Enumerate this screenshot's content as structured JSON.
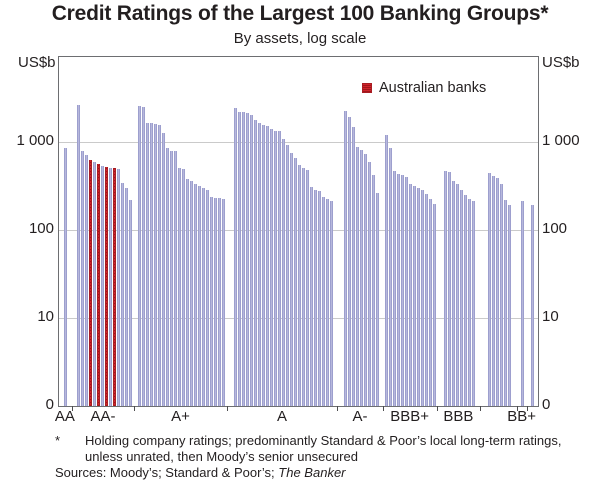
{
  "title": "Credit Ratings of the Largest 100 Banking Groups*",
  "subtitle": "By assets, log scale",
  "y_axis": {
    "unit_left": "US$b",
    "unit_right": "US$b",
    "tick_labels": [
      "1 000",
      "100",
      "10",
      "0"
    ]
  },
  "legend": {
    "label": "Australian banks",
    "color": "#d0242b"
  },
  "footnote": {
    "star": "*",
    "line1": "Holding company ratings; predominantly Standard & Poor’s local long-term",
    "line2": "ratings, unless unrated, then Moody’s senior unsecured",
    "sources_prefix": "Sources: Moody’s; Standard & Poor’s; ",
    "sources_italic": "The Banker"
  },
  "colors": {
    "bar_fill": "#b7b8dc",
    "bar_edge": "#9d9fce",
    "australian_fill": "#d0242b",
    "australian_edge": "#a81d23",
    "gridline": "#cacaca",
    "axis": "#6d6e71"
  },
  "chart_data": {
    "type": "bar",
    "title": "Credit Ratings of the Largest 100 Banking Groups*",
    "subtitle": "By assets, log scale",
    "ylabel": "US$b",
    "yscale": "log",
    "ylim": [
      1,
      9000
    ],
    "gridline_values": [
      10,
      100,
      1000
    ],
    "grid": true,
    "legend_position": "top-right-inside",
    "note": "Each bar is one banking group, grouped by credit rating, sorted by assets; red bars are the four Australian banks (rated AA-). Unlabeled groups correspond to unmarked rating notches.",
    "groups": [
      {
        "label": "AA",
        "values": [
          850
        ],
        "australian_indexes": []
      },
      {
        "label": "AA-",
        "values": [
          2650,
          780,
          720,
          630,
          595,
          565,
          535,
          520,
          510,
          500,
          495,
          340,
          300,
          220
        ],
        "australian_indexes": [
          3,
          5,
          7,
          9
        ]
      },
      {
        "label": "A+",
        "values": [
          2550,
          2480,
          1650,
          1640,
          1620,
          1580,
          1270,
          860,
          790,
          785,
          510,
          490,
          375,
          360,
          330,
          315,
          300,
          287,
          240,
          234,
          230,
          226
        ],
        "australian_indexes": []
      },
      {
        "label": "A",
        "values": [
          2440,
          2200,
          2190,
          2140,
          2050,
          1800,
          1650,
          1580,
          1510,
          1420,
          1350,
          1320,
          1070,
          930,
          750,
          660,
          545,
          510,
          486,
          305,
          287,
          280,
          240,
          226,
          213
        ],
        "australian_indexes": []
      },
      {
        "label": "A-",
        "values": [
          2250,
          1900,
          1500,
          880,
          820,
          740,
          600,
          425,
          263
        ],
        "australian_indexes": []
      },
      {
        "label": "BBB+",
        "values": [
          1210,
          860,
          465,
          435,
          420,
          395,
          335,
          315,
          300,
          287,
          255,
          225,
          195
        ],
        "australian_indexes": []
      },
      {
        "label": "BBB",
        "values": [
          465,
          460,
          365,
          330,
          287,
          250,
          225,
          213
        ],
        "australian_indexes": []
      },
      {
        "label": "",
        "values": [
          445,
          410,
          385,
          330,
          220,
          190
        ],
        "australian_indexes": []
      },
      {
        "label": "BB+",
        "values": [
          215
        ],
        "australian_indexes": []
      },
      {
        "label": "",
        "values": [
          190
        ],
        "australian_indexes": []
      }
    ]
  }
}
